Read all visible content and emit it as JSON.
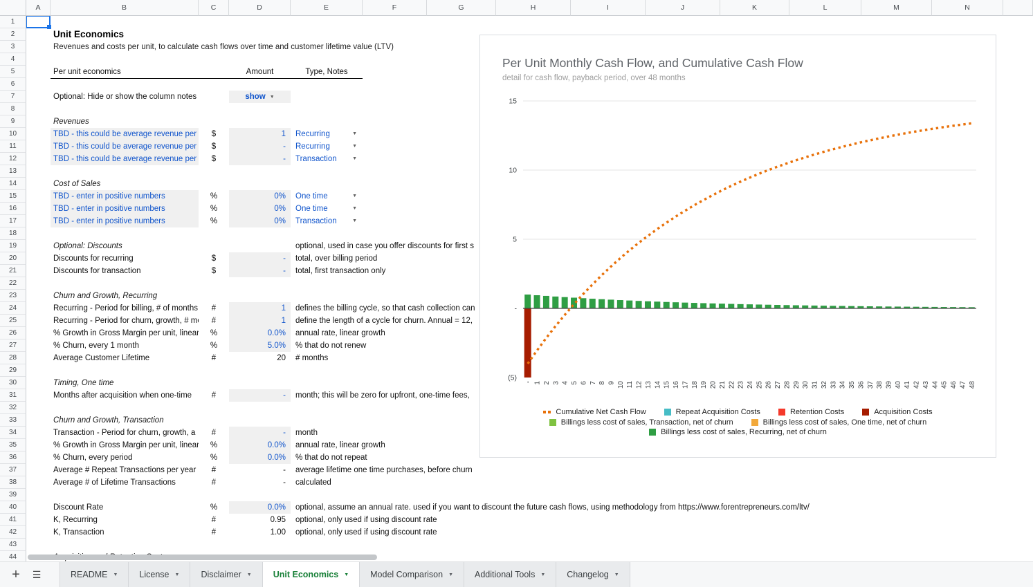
{
  "doc": {
    "title": "Unit Economics",
    "subtitle": "Revenues and costs per unit, to calculate cash flows over time and customer lifetime value (LTV)"
  },
  "spreadsheet": {
    "columns": [
      "A",
      "B",
      "C",
      "D",
      "E",
      "F",
      "G",
      "H",
      "I",
      "J",
      "K",
      "L",
      "M",
      "N",
      ""
    ],
    "row_numbers_visible": 44,
    "selected_cell": "A1"
  },
  "table_header": {
    "left": "Per unit economics",
    "amount": "Amount",
    "type": "Type, Notes"
  },
  "show_notes": {
    "label": "Optional: Hide or show the column notes",
    "value": "show"
  },
  "rows": [
    {
      "r": 9,
      "kind": "section",
      "label": "Revenues"
    },
    {
      "r": 10,
      "kind": "input",
      "label": "TBD - this could be average revenue per unit",
      "unit": "$",
      "amount": "1",
      "type": "Recurring"
    },
    {
      "r": 11,
      "kind": "input",
      "label": "TBD - this could be average revenue per unit",
      "unit": "$",
      "amount": "-",
      "type": "Recurring"
    },
    {
      "r": 12,
      "kind": "input",
      "label": "TBD - this could be average revenue per unit",
      "unit": "$",
      "amount": "-",
      "type": "Transaction"
    },
    {
      "r": 14,
      "kind": "section",
      "label": "Cost of Sales"
    },
    {
      "r": 15,
      "kind": "input",
      "label": "TBD - enter in positive numbers",
      "unit": "%",
      "amount": "0%",
      "type": "One time"
    },
    {
      "r": 16,
      "kind": "input",
      "label": "TBD - enter in positive numbers",
      "unit": "%",
      "amount": "0%",
      "type": "One time"
    },
    {
      "r": 17,
      "kind": "input",
      "label": "TBD - enter in positive numbers",
      "unit": "%",
      "amount": "0%",
      "type": "Transaction"
    },
    {
      "r": 19,
      "kind": "section",
      "label": "Optional: Discounts",
      "note": "optional, used in case you offer discounts for first s"
    },
    {
      "r": 20,
      "kind": "data",
      "label": "Discounts for recurring",
      "unit": "$",
      "amount": "-",
      "amount_input": true,
      "note": "total, over billing period"
    },
    {
      "r": 21,
      "kind": "data",
      "label": "Discounts for transaction",
      "unit": "$",
      "amount": "-",
      "amount_input": true,
      "note": "total, first transaction only"
    },
    {
      "r": 23,
      "kind": "section",
      "label": "Churn and Growth, Recurring"
    },
    {
      "r": 24,
      "kind": "data",
      "label": "Recurring - Period for billing, # of months",
      "unit": "#",
      "amount": "1",
      "amount_input": true,
      "note": "defines the billing cycle, so that cash collection can"
    },
    {
      "r": 25,
      "kind": "data",
      "label": "Recurring - Period for churn, growth, # mo",
      "unit": "#",
      "amount": "1",
      "amount_input": true,
      "note": "define the length of a cycle for churn. Annual = 12,"
    },
    {
      "r": 26,
      "kind": "data",
      "label": "% Growth in Gross Margin per unit, linear",
      "unit": "%",
      "amount": "0.0%",
      "amount_input": true,
      "note": "annual rate, linear growth"
    },
    {
      "r": 27,
      "kind": "data",
      "label": "% Churn, every 1 month",
      "unit": "%",
      "amount": "5.0%",
      "amount_input": true,
      "note": "% that do not renew"
    },
    {
      "r": 28,
      "kind": "data",
      "label": "Average Customer Lifetime",
      "unit": "#",
      "amount": "20",
      "amount_input": false,
      "note": "# months"
    },
    {
      "r": 30,
      "kind": "section",
      "label": "Timing, One time"
    },
    {
      "r": 31,
      "kind": "data",
      "label": "Months after acquisition when one-time",
      "unit": "#",
      "amount": "-",
      "amount_input": true,
      "note": "month; this will be zero for upfront, one-time fees,"
    },
    {
      "r": 33,
      "kind": "section",
      "label": "Churn and Growth, Transaction"
    },
    {
      "r": 34,
      "kind": "data",
      "label": "Transaction - Period for churn, growth, a",
      "unit": "#",
      "amount": "-",
      "amount_input": true,
      "note": "month"
    },
    {
      "r": 35,
      "kind": "data",
      "label": "% Growth in Gross Margin per unit, linear",
      "unit": "%",
      "amount": "0.0%",
      "amount_input": true,
      "note": "annual rate, linear growth"
    },
    {
      "r": 36,
      "kind": "data",
      "label": "% Churn, every period",
      "unit": "%",
      "amount": "0.0%",
      "amount_input": true,
      "note": "% that do not repeat"
    },
    {
      "r": 37,
      "kind": "data",
      "label": "Average # Repeat Transactions per year",
      "unit": "#",
      "amount": "-",
      "amount_input": false,
      "note": "average lifetime one time purchases, before churn"
    },
    {
      "r": 38,
      "kind": "data",
      "label": "Average # of Lifetime Transactions",
      "unit": "#",
      "amount": "-",
      "amount_input": false,
      "note": "calculated"
    },
    {
      "r": 40,
      "kind": "data",
      "label": "Discount Rate",
      "unit": "%",
      "amount": "0.0%",
      "amount_input": true,
      "note": "optional, assume an annual rate. used if you want to discount the future cash flows, using methodology from https://www.forentrepreneurs.com/ltv/"
    },
    {
      "r": 41,
      "kind": "data",
      "label": "K, Recurring",
      "unit": "#",
      "amount": "0.95",
      "amount_input": false,
      "note": "optional, only used if using discount rate"
    },
    {
      "r": 42,
      "kind": "data",
      "label": "K, Transaction",
      "unit": "#",
      "amount": "1.00",
      "amount_input": false,
      "note": "optional, only used if using discount rate"
    },
    {
      "r": 44,
      "kind": "section",
      "label": "Acquisition and Retention Costs"
    }
  ],
  "chart_data": {
    "type": "combo",
    "title": "Per Unit Monthly Cash Flow, and Cumulative Cash Flow",
    "subtitle": "detail for cash flow, payback period, over 48 months",
    "x_labels": [
      "-",
      "1",
      "2",
      "3",
      "4",
      "5",
      "6",
      "7",
      "8",
      "9",
      "10",
      "11",
      "12",
      "13",
      "14",
      "15",
      "16",
      "17",
      "18",
      "19",
      "20",
      "21",
      "22",
      "23",
      "24",
      "25",
      "26",
      "27",
      "28",
      "29",
      "30",
      "31",
      "32",
      "33",
      "34",
      "35",
      "36",
      "37",
      "38",
      "39",
      "40",
      "41",
      "42",
      "43",
      "44",
      "45",
      "46",
      "47",
      "48"
    ],
    "ylim": [
      -5,
      15
    ],
    "y_ticks": [
      {
        "v": 15,
        "label": "15"
      },
      {
        "v": 10,
        "label": "10"
      },
      {
        "v": 5,
        "label": "5"
      },
      {
        "v": 0,
        "label": "-"
      },
      {
        "v": -5,
        "label": "(5)"
      }
    ],
    "series": [
      {
        "name": "Cumulative Net Cash Flow",
        "type": "line",
        "style": "dotted",
        "color": "#E8710A",
        "values": [
          -4,
          -3.05,
          -2.148,
          -1.29,
          -0.476,
          0.298,
          1.033,
          1.732,
          2.395,
          3.025,
          3.624,
          4.193,
          4.733,
          5.246,
          5.734,
          6.197,
          6.638,
          7.056,
          7.453,
          7.83,
          8.189,
          8.529,
          8.853,
          9.16,
          9.452,
          9.73,
          9.993,
          10.243,
          10.481,
          10.707,
          10.922,
          11.126,
          11.32,
          11.504,
          11.679,
          11.845,
          12.003,
          12.152,
          12.295,
          12.43,
          12.558,
          12.681,
          12.796,
          12.907,
          13.011,
          13.111,
          13.205,
          13.295,
          13.38
        ]
      },
      {
        "name": "Billings less cost of sales, Recurring, net of churn",
        "type": "bar",
        "color": "#2F9E44",
        "values": [
          1,
          0.95,
          0.903,
          0.857,
          0.815,
          0.774,
          0.735,
          0.698,
          0.663,
          0.63,
          0.599,
          0.569,
          0.54,
          0.513,
          0.488,
          0.463,
          0.44,
          0.418,
          0.397,
          0.377,
          0.358,
          0.341,
          0.324,
          0.307,
          0.292,
          0.277,
          0.264,
          0.25,
          0.238,
          0.226,
          0.215,
          0.204,
          0.194,
          0.184,
          0.175,
          0.166,
          0.158,
          0.15,
          0.142,
          0.135,
          0.129,
          0.122,
          0.116,
          0.11,
          0.105,
          0.099,
          0.095,
          0.09,
          0.085
        ]
      },
      {
        "name": "Acquisition Costs",
        "type": "bar",
        "color": "#A61C00",
        "x_index": 0,
        "value": -5
      }
    ],
    "legend_rows": [
      [
        {
          "label": "Cumulative Net Cash Flow",
          "color": "#E8710A",
          "shape": "dots"
        },
        {
          "label": "Repeat Acquisition Costs",
          "color": "#46BDC6",
          "shape": "square"
        },
        {
          "label": "Retention Costs",
          "color": "#F5392B",
          "shape": "square"
        },
        {
          "label": "Acquisition Costs",
          "color": "#A61C00",
          "shape": "square"
        }
      ],
      [
        {
          "label": "Billings less cost of sales, Transaction, net of churn",
          "color": "#7FC241",
          "shape": "square"
        },
        {
          "label": "Billings less cost of sales, One time, net of churn",
          "color": "#F2A93B",
          "shape": "square"
        }
      ],
      [
        {
          "label": "Billings less cost of sales, Recurring, net of churn",
          "color": "#2F9E44",
          "shape": "square"
        }
      ]
    ],
    "legend_position": "bottom",
    "grid": true
  },
  "icons": {
    "add_sheet": "+",
    "all_sheets": "☰",
    "dropdown_caret": "▼"
  },
  "sheet_tabs": {
    "tabs": [
      {
        "label": "README",
        "active": false
      },
      {
        "label": "License",
        "active": false
      },
      {
        "label": "Disclaimer",
        "active": false
      },
      {
        "label": "Unit Economics",
        "active": true
      },
      {
        "label": "Model Comparison",
        "active": false
      },
      {
        "label": "Additional Tools",
        "active": false
      },
      {
        "label": "Changelog",
        "active": false
      }
    ]
  },
  "colors": {
    "accent_blue": "#1155CC",
    "selection_blue": "#1A73E8",
    "input_fill": "#F0F0F0",
    "active_tab_green": "#188038"
  }
}
